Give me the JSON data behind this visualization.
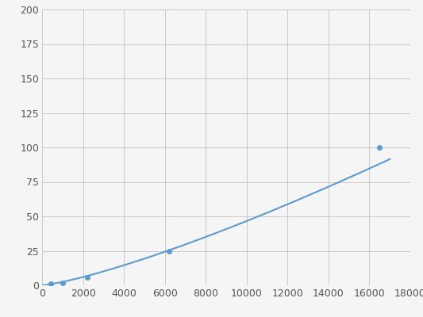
{
  "x": [
    400,
    1000,
    2200,
    6200,
    16500
  ],
  "y": [
    1,
    2,
    6,
    25,
    100
  ],
  "line_color": "#5b9bd5",
  "marker_color": "#5b9bd5",
  "marker_size": 4,
  "marker_style": "o",
  "line_width": 1.5,
  "xlim": [
    0,
    18000
  ],
  "ylim": [
    0,
    200
  ],
  "xticks": [
    0,
    2000,
    4000,
    6000,
    8000,
    10000,
    12000,
    14000,
    16000,
    18000
  ],
  "yticks": [
    0,
    25,
    50,
    75,
    100,
    125,
    150,
    175,
    200
  ],
  "grid_color": "#c8c8c8",
  "background_color": "#f5f5f5",
  "tick_label_fontsize": 9,
  "tick_label_color": "#555555",
  "figsize": [
    5.33,
    4.0
  ],
  "dpi": 100
}
